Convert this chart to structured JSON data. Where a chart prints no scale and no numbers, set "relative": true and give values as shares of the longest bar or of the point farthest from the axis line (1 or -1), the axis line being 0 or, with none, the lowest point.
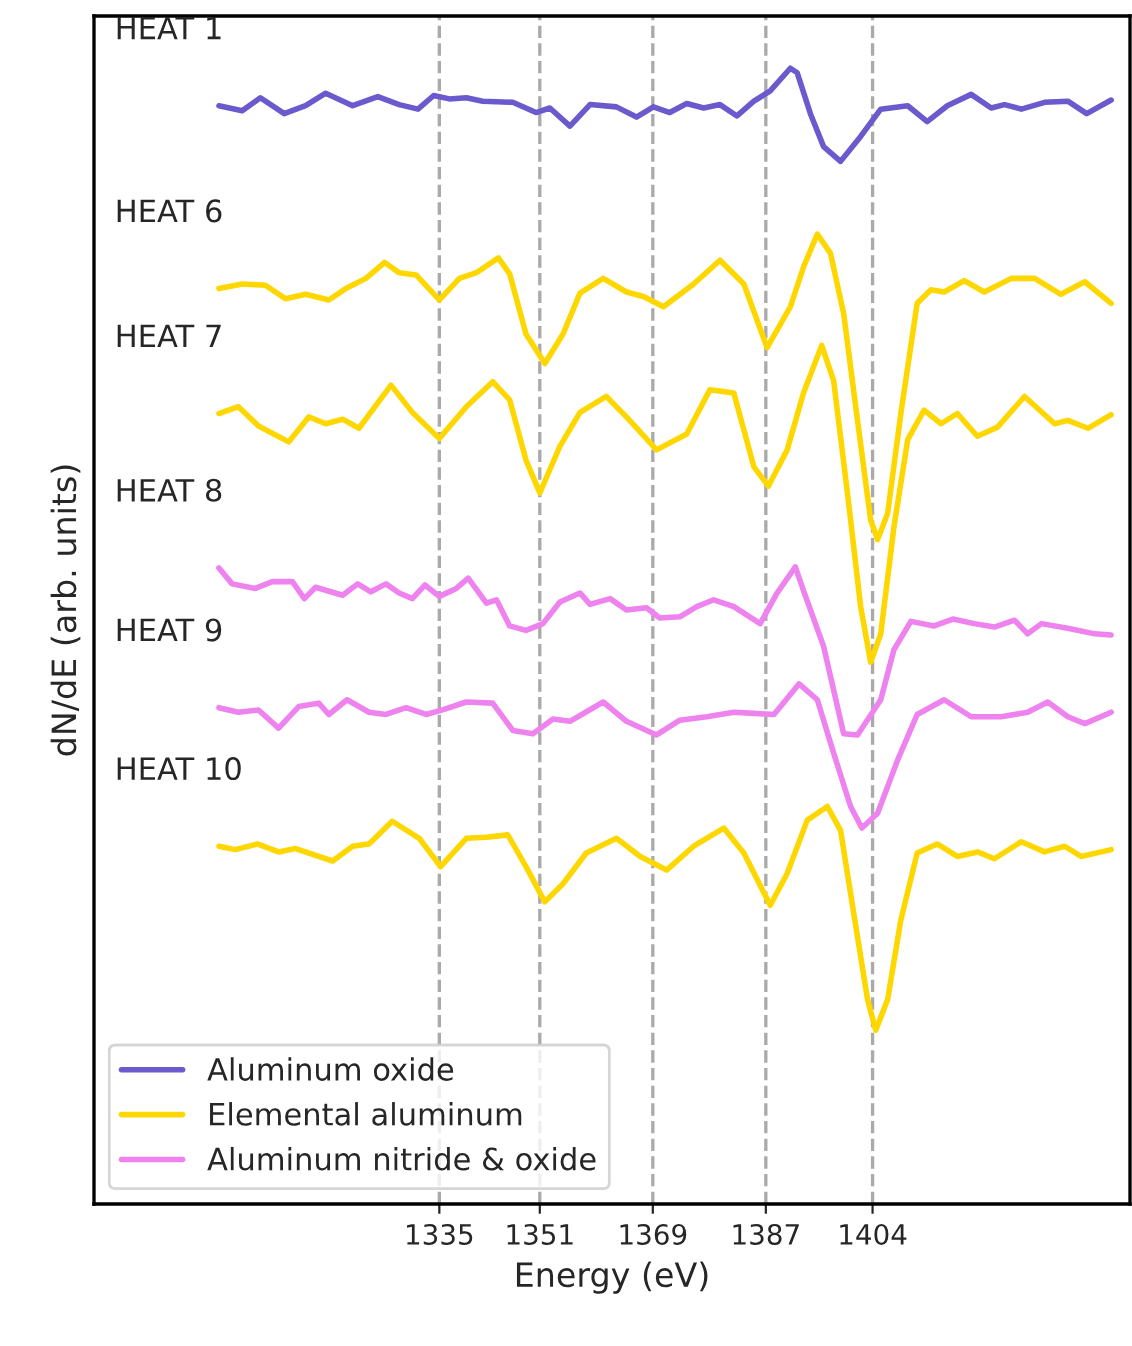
{
  "chart_data": {
    "type": "line",
    "relative": true,
    "xlabel": "Energy (eV)",
    "ylabel": "dN/dE (arb. units)",
    "xlim": [
      1280,
      1445
    ],
    "xticks": [
      1335,
      1351,
      1369,
      1387,
      1404
    ],
    "grid": "x",
    "legend": "bottom left",
    "series": [
      {
        "name": "Aluminum oxide",
        "color": "#6a5acd",
        "x": [
          1299.9,
          1303.6,
          1306.5,
          1310.3,
          1313.7,
          1316.9,
          1321.2,
          1325.2,
          1328.6,
          1331.6,
          1334.1,
          1336.6,
          1339.3,
          1341.9,
          1346.7,
          1350.4,
          1352.6,
          1355.8,
          1359.0,
          1363.2,
          1366.4,
          1369.1,
          1371.7,
          1374.4,
          1377.1,
          1379.7,
          1382.4,
          1385.1,
          1387.7,
          1390.9,
          1392.0,
          1394.1,
          1396.2,
          1398.9,
          1402.1,
          1405.3,
          1409.6,
          1412.7,
          1415.9,
          1419.7,
          1422.9,
          1425.0,
          1427.7,
          1431.4,
          1435.1,
          1438.1,
          1442.0
        ],
        "values": [
          0.967,
          0.9625,
          0.974,
          0.96,
          0.967,
          0.978,
          0.967,
          0.975,
          0.968,
          0.964,
          0.976,
          0.973,
          0.974,
          0.971,
          0.97,
          0.961,
          0.965,
          0.949,
          0.968,
          0.966,
          0.957,
          0.966,
          0.961,
          0.969,
          0.965,
          0.968,
          0.958,
          0.971,
          0.98,
          1.0,
          0.996,
          0.96,
          0.931,
          0.918,
          0.94,
          0.964,
          0.967,
          0.953,
          0.967,
          0.977,
          0.965,
          0.968,
          0.964,
          0.97,
          0.971,
          0.96,
          0.972
        ]
      },
      {
        "name": "Elemental aluminum",
        "color": "#ffd700",
        "x": [
          1299.9,
          1303.6,
          1307.3,
          1310.5,
          1313.7,
          1317.4,
          1320.1,
          1323.3,
          1326.3,
          1328.6,
          1331.3,
          1335.0,
          1338.2,
          1340.9,
          1344.4,
          1346.2,
          1348.8,
          1351.8,
          1354.7,
          1357.4,
          1361.1,
          1364.8,
          1367.5,
          1370.7,
          1375.5,
          1379.7,
          1383.5,
          1387.2,
          1390.9,
          1393.0,
          1395.2,
          1397.3,
          1399.4,
          1401.6,
          1403.7,
          1404.8,
          1406.4,
          1408.5,
          1411.1,
          1413.3,
          1415.4,
          1418.6,
          1421.8,
          1426.1,
          1429.8,
          1434.0,
          1437.8,
          1442.0
        ],
        "values": [
          0.806,
          0.81,
          0.809,
          0.797,
          0.801,
          0.796,
          0.806,
          0.815,
          0.829,
          0.82,
          0.818,
          0.796,
          0.815,
          0.82,
          0.833,
          0.819,
          0.766,
          0.74,
          0.766,
          0.802,
          0.815,
          0.803,
          0.799,
          0.79,
          0.81,
          0.831,
          0.81,
          0.754,
          0.79,
          0.825,
          0.854,
          0.837,
          0.784,
          0.69,
          0.602,
          0.585,
          0.608,
          0.696,
          0.793,
          0.805,
          0.803,
          0.813,
          0.803,
          0.815,
          0.815,
          0.801,
          0.812,
          0.793
        ]
      },
      {
        "color": "#ffd700",
        "x": [
          1299.9,
          1303.0,
          1306.2,
          1311.0,
          1314.2,
          1316.9,
          1319.6,
          1322.2,
          1327.3,
          1330.7,
          1335.0,
          1339.3,
          1343.5,
          1346.2,
          1348.8,
          1351.0,
          1354.2,
          1357.4,
          1361.6,
          1364.8,
          1369.6,
          1374.4,
          1378.1,
          1381.9,
          1385.1,
          1387.4,
          1390.4,
          1393.0,
          1395.9,
          1397.8,
          1400.0,
          1402.1,
          1403.7,
          1405.3,
          1407.4,
          1409.6,
          1412.2,
          1414.9,
          1417.5,
          1420.7,
          1423.9,
          1428.2,
          1433.0,
          1435.1,
          1438.3,
          1442.0
        ],
        "values": [
          0.696,
          0.702,
          0.685,
          0.671,
          0.693,
          0.687,
          0.691,
          0.683,
          0.721,
          0.697,
          0.674,
          0.702,
          0.724,
          0.708,
          0.655,
          0.626,
          0.667,
          0.697,
          0.711,
          0.693,
          0.664,
          0.678,
          0.717,
          0.714,
          0.649,
          0.632,
          0.664,
          0.714,
          0.756,
          0.725,
          0.626,
          0.526,
          0.477,
          0.502,
          0.596,
          0.673,
          0.699,
          0.687,
          0.696,
          0.676,
          0.684,
          0.711,
          0.687,
          0.69,
          0.683,
          0.695
        ]
      },
      {
        "name": "Aluminum nitride & oxide",
        "color": "#ee82ee",
        "x": [
          1299.9,
          1302.0,
          1305.7,
          1308.4,
          1311.6,
          1313.5,
          1315.3,
          1319.6,
          1322.0,
          1324.1,
          1326.5,
          1328.6,
          1330.7,
          1332.7,
          1335.0,
          1337.7,
          1339.6,
          1342.5,
          1344.1,
          1346.2,
          1348.8,
          1351.5,
          1354.2,
          1357.4,
          1359.0,
          1362.2,
          1364.8,
          1368.0,
          1370.1,
          1373.3,
          1376.0,
          1378.7,
          1381.9,
          1386.1,
          1388.8,
          1391.7,
          1393.0,
          1396.2,
          1399.4,
          1401.6,
          1405.3,
          1407.4,
          1410.1,
          1413.8,
          1416.8,
          1420.2,
          1423.4,
          1426.6,
          1428.7,
          1430.9,
          1435.1,
          1439.4,
          1442.0
        ],
        "values": [
          0.56,
          0.546,
          0.542,
          0.548,
          0.548,
          0.533,
          0.543,
          0.536,
          0.546,
          0.539,
          0.546,
          0.538,
          0.533,
          0.545,
          0.535,
          0.542,
          0.551,
          0.529,
          0.532,
          0.509,
          0.505,
          0.511,
          0.53,
          0.538,
          0.528,
          0.533,
          0.523,
          0.525,
          0.516,
          0.517,
          0.526,
          0.532,
          0.526,
          0.511,
          0.538,
          0.561,
          0.54,
          0.491,
          0.414,
          0.413,
          0.444,
          0.488,
          0.513,
          0.509,
          0.515,
          0.511,
          0.508,
          0.514,
          0.502,
          0.511,
          0.507,
          0.502,
          0.501
        ]
      },
      {
        "color": "#ee82ee",
        "x": [
          1299.9,
          1303.0,
          1306.2,
          1309.4,
          1312.6,
          1315.8,
          1317.4,
          1320.3,
          1323.8,
          1326.5,
          1329.7,
          1332.9,
          1335.5,
          1339.3,
          1343.5,
          1346.7,
          1349.9,
          1353.1,
          1355.8,
          1361.1,
          1364.8,
          1369.6,
          1373.3,
          1377.6,
          1381.9,
          1385.1,
          1388.3,
          1392.3,
          1395.2,
          1397.8,
          1400.5,
          1402.3,
          1404.8,
          1408.0,
          1411.1,
          1415.4,
          1419.7,
          1424.5,
          1428.7,
          1431.9,
          1435.1,
          1437.8,
          1442.0
        ],
        "values": [
          0.437,
          0.433,
          0.435,
          0.419,
          0.438,
          0.441,
          0.431,
          0.444,
          0.433,
          0.431,
          0.437,
          0.431,
          0.435,
          0.442,
          0.441,
          0.417,
          0.414,
          0.427,
          0.425,
          0.442,
          0.425,
          0.413,
          0.426,
          0.429,
          0.433,
          0.432,
          0.431,
          0.458,
          0.444,
          0.397,
          0.35,
          0.331,
          0.344,
          0.391,
          0.431,
          0.444,
          0.429,
          0.429,
          0.433,
          0.442,
          0.429,
          0.423,
          0.433
        ]
      },
      {
        "color": "#ffd700",
        "x": [
          1299.9,
          1302.5,
          1306.0,
          1309.4,
          1312.1,
          1318.0,
          1321.2,
          1323.8,
          1327.5,
          1331.8,
          1335.2,
          1339.3,
          1342.5,
          1345.9,
          1348.8,
          1351.8,
          1354.7,
          1358.4,
          1363.2,
          1367.0,
          1371.2,
          1375.5,
          1380.3,
          1383.5,
          1387.7,
          1390.4,
          1393.6,
          1396.8,
          1398.9,
          1401.0,
          1403.2,
          1404.5,
          1406.4,
          1408.5,
          1411.1,
          1414.3,
          1417.5,
          1420.7,
          1423.4,
          1427.7,
          1431.4,
          1434.6,
          1437.2,
          1442.0
        ],
        "values": [
          0.315,
          0.312,
          0.317,
          0.31,
          0.313,
          0.302,
          0.315,
          0.317,
          0.337,
          0.322,
          0.297,
          0.322,
          0.323,
          0.325,
          0.297,
          0.266,
          0.282,
          0.309,
          0.322,
          0.306,
          0.294,
          0.315,
          0.331,
          0.309,
          0.263,
          0.291,
          0.338,
          0.35,
          0.329,
          0.256,
          0.18,
          0.153,
          0.18,
          0.25,
          0.309,
          0.317,
          0.306,
          0.31,
          0.304,
          0.319,
          0.31,
          0.315,
          0.306,
          0.312
        ]
      }
    ],
    "annotations": [
      "HEAT 1",
      "HEAT 6",
      "HEAT 7",
      "HEAT 8",
      "HEAT 9",
      "HEAT 10"
    ]
  }
}
